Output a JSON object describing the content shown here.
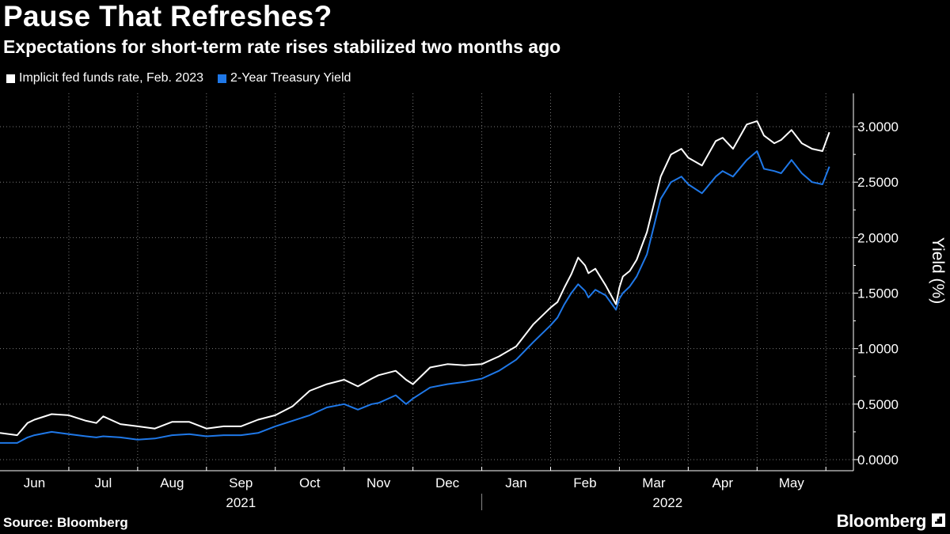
{
  "title": "Pause That Refreshes?",
  "subtitle": "Expectations for short-term rate rises stabilized two months ago",
  "source": "Source: Bloomberg",
  "brand": "Bloomberg",
  "colors": {
    "background": "#000000",
    "series_fed": "#ffffff",
    "series_treasury": "#1f78e8",
    "grid": "#7a7a7a"
  },
  "chart_data": {
    "type": "line",
    "title": "Pause That Refreshes?",
    "ylabel": "Yield (%)",
    "xlabel": "",
    "ylim": [
      -0.1,
      3.3
    ],
    "yticks": [
      0,
      0.5,
      1,
      1.5,
      2,
      2.5,
      3
    ],
    "ytick_labels": [
      "0.0000",
      "0.5000",
      "1.0000",
      "1.5000",
      "2.0000",
      "2.5000",
      "3.0000"
    ],
    "grid": true,
    "legend_position": "top-left",
    "x_range": [
      0,
      12.4
    ],
    "months": [
      {
        "label": "Jun",
        "pos": 0.5
      },
      {
        "label": "Jul",
        "pos": 1.5
      },
      {
        "label": "Aug",
        "pos": 2.5
      },
      {
        "label": "Sep",
        "pos": 3.5
      },
      {
        "label": "Oct",
        "pos": 4.5
      },
      {
        "label": "Nov",
        "pos": 5.5
      },
      {
        "label": "Dec",
        "pos": 6.5
      },
      {
        "label": "Jan",
        "pos": 7.5
      },
      {
        "label": "Feb",
        "pos": 8.5
      },
      {
        "label": "Mar",
        "pos": 9.5
      },
      {
        "label": "Apr",
        "pos": 10.5
      },
      {
        "label": "May",
        "pos": 11.5
      }
    ],
    "month_boundaries": [
      1,
      2,
      3,
      4,
      5,
      6,
      7,
      8,
      9,
      10,
      11,
      12
    ],
    "years": [
      {
        "label": "2021",
        "pos": 3.5
      },
      {
        "label": "2022",
        "pos": 9.7
      }
    ],
    "year_divider": 7,
    "series": [
      {
        "name": "Implicit fed funds rate, Feb. 2023",
        "color": "#ffffff",
        "x": [
          0,
          0.25,
          0.4,
          0.5,
          0.75,
          1,
          1.25,
          1.4,
          1.5,
          1.75,
          2,
          2.25,
          2.5,
          2.75,
          3,
          3.25,
          3.5,
          3.75,
          4,
          4.25,
          4.5,
          4.75,
          5,
          5.2,
          5.4,
          5.5,
          5.75,
          5.9,
          6,
          6.25,
          6.5,
          6.75,
          7,
          7.25,
          7.5,
          7.75,
          8,
          8.1,
          8.2,
          8.3,
          8.4,
          8.5,
          8.55,
          8.65,
          8.8,
          8.95,
          9.0,
          9.05,
          9.15,
          9.25,
          9.4,
          9.5,
          9.6,
          9.75,
          9.9,
          10.0,
          10.2,
          10.4,
          10.5,
          10.65,
          10.85,
          11.0,
          11.1,
          11.25,
          11.35,
          11.5,
          11.65,
          11.8,
          11.95,
          12.05
        ],
        "values": [
          0.24,
          0.22,
          0.33,
          0.36,
          0.41,
          0.4,
          0.35,
          0.33,
          0.39,
          0.32,
          0.3,
          0.28,
          0.34,
          0.34,
          0.28,
          0.3,
          0.3,
          0.36,
          0.4,
          0.48,
          0.62,
          0.68,
          0.72,
          0.66,
          0.73,
          0.76,
          0.8,
          0.72,
          0.68,
          0.83,
          0.86,
          0.85,
          0.86,
          0.93,
          1.02,
          1.22,
          1.37,
          1.42,
          1.55,
          1.67,
          1.82,
          1.75,
          1.68,
          1.72,
          1.57,
          1.4,
          1.55,
          1.65,
          1.7,
          1.8,
          2.05,
          2.3,
          2.55,
          2.75,
          2.8,
          2.72,
          2.65,
          2.87,
          2.9,
          2.8,
          3.02,
          3.05,
          2.92,
          2.85,
          2.88,
          2.97,
          2.85,
          2.8,
          2.78,
          2.95
        ]
      },
      {
        "name": "2-Year Treasury Yield",
        "color": "#1f78e8",
        "x": [
          0,
          0.25,
          0.4,
          0.5,
          0.75,
          1,
          1.25,
          1.4,
          1.5,
          1.75,
          2,
          2.25,
          2.5,
          2.75,
          3,
          3.25,
          3.5,
          3.75,
          4,
          4.25,
          4.5,
          4.75,
          5,
          5.2,
          5.4,
          5.5,
          5.75,
          5.9,
          6,
          6.25,
          6.5,
          6.75,
          7,
          7.25,
          7.5,
          7.75,
          8,
          8.1,
          8.2,
          8.3,
          8.4,
          8.5,
          8.55,
          8.65,
          8.8,
          8.95,
          9.0,
          9.05,
          9.15,
          9.25,
          9.4,
          9.5,
          9.6,
          9.75,
          9.9,
          10.0,
          10.2,
          10.4,
          10.5,
          10.65,
          10.85,
          11.0,
          11.1,
          11.25,
          11.35,
          11.5,
          11.65,
          11.8,
          11.95,
          12.05
        ],
        "values": [
          0.15,
          0.15,
          0.2,
          0.22,
          0.25,
          0.23,
          0.21,
          0.2,
          0.21,
          0.2,
          0.18,
          0.19,
          0.22,
          0.23,
          0.21,
          0.22,
          0.22,
          0.24,
          0.3,
          0.35,
          0.4,
          0.47,
          0.5,
          0.45,
          0.5,
          0.51,
          0.58,
          0.5,
          0.55,
          0.65,
          0.68,
          0.7,
          0.73,
          0.8,
          0.9,
          1.06,
          1.21,
          1.28,
          1.4,
          1.5,
          1.58,
          1.52,
          1.46,
          1.53,
          1.48,
          1.35,
          1.45,
          1.5,
          1.56,
          1.65,
          1.85,
          2.1,
          2.35,
          2.5,
          2.55,
          2.48,
          2.4,
          2.55,
          2.6,
          2.55,
          2.7,
          2.78,
          2.62,
          2.6,
          2.58,
          2.7,
          2.58,
          2.5,
          2.48,
          2.64
        ]
      }
    ]
  }
}
